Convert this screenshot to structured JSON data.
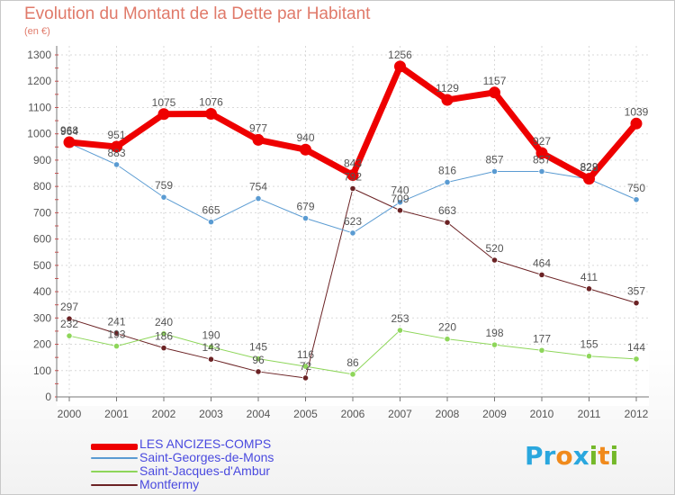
{
  "title": "Evolution du Montant de la Dette par Habitant",
  "unit": "(en €)",
  "logo": {
    "text": "Proxiti",
    "letters": [
      "P",
      "r",
      "o",
      "x",
      "i",
      "t",
      "i"
    ],
    "colors": [
      "#2aa7de",
      "#2aa7de",
      "#f08a1c",
      "#2aa7de",
      "#74b829",
      "#f08a1c",
      "#74b829"
    ]
  },
  "chart_data": {
    "type": "line",
    "x": [
      "2000",
      "2001",
      "2002",
      "2003",
      "2004",
      "2005",
      "2006",
      "2007",
      "2008",
      "2009",
      "2010",
      "2011",
      "2012"
    ],
    "ylim": [
      0,
      1300
    ],
    "yticks": [
      0,
      100,
      200,
      300,
      400,
      500,
      600,
      700,
      800,
      900,
      1000,
      1100,
      1200,
      1300
    ],
    "grid": true,
    "legend_position": "bottom-left",
    "series": [
      {
        "name": "LES ANCIZES-COMPS",
        "color": "#ee0000",
        "width": 7,
        "values": [
          968,
          951,
          1075,
          1076,
          977,
          940,
          843,
          1256,
          1129,
          1157,
          927,
          829,
          1039
        ]
      },
      {
        "name": "Saint-Georges-de-Mons",
        "color": "#5a9bd2",
        "width": 1,
        "values": [
          964,
          883,
          759,
          665,
          754,
          679,
          623,
          740,
          816,
          857,
          857,
          828,
          750
        ]
      },
      {
        "name": "Saint-Jacques-d'Ambur",
        "color": "#8ed65a",
        "width": 1,
        "values": [
          232,
          193,
          240,
          190,
          145,
          116,
          86,
          253,
          220,
          198,
          177,
          155,
          144
        ]
      },
      {
        "name": "Montfermy",
        "color": "#6b2224",
        "width": 1,
        "values": [
          297,
          241,
          186,
          143,
          96,
          72,
          792,
          709,
          663,
          520,
          464,
          411,
          357
        ]
      }
    ],
    "labels": [
      [
        "968",
        "951",
        "1075",
        "1076",
        "977",
        "940",
        "843",
        "1256",
        "1129",
        "1157",
        "927",
        "829",
        "1039"
      ],
      [
        "964",
        "883",
        "759",
        "665",
        "754",
        "679",
        "623",
        "740",
        "816",
        "857",
        "857",
        "828",
        "750"
      ],
      [
        "232",
        "193",
        "240",
        "190",
        "145",
        "116",
        "86",
        "253",
        "220",
        "198",
        "177",
        "155",
        "144"
      ],
      [
        "297",
        "241",
        "186",
        "143",
        "96",
        "72",
        "792",
        "709",
        "663",
        "520",
        "464",
        "411",
        "357"
      ]
    ]
  }
}
